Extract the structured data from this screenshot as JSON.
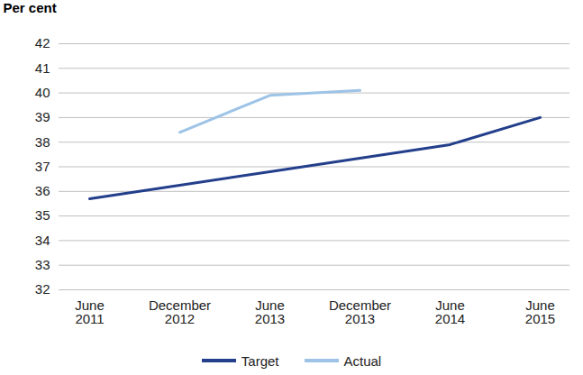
{
  "chart_data": {
    "type": "line",
    "y_label": "Per cent",
    "categories": [
      "June 2011",
      "December 2012",
      "June 2013",
      "December 2013",
      "June 2014",
      "June 2015"
    ],
    "series": [
      {
        "name": "Target",
        "color": "#233f8b",
        "values": [
          35.7,
          36.25,
          36.8,
          37.35,
          37.9,
          39.0
        ]
      },
      {
        "name": "Actual",
        "color": "#9dc3e6",
        "values": [
          null,
          38.4,
          39.9,
          40.1,
          null,
          null
        ]
      }
    ],
    "ylim": [
      32,
      42
    ],
    "yticks": [
      32,
      33,
      34,
      35,
      36,
      37,
      38,
      39,
      40,
      41,
      42
    ],
    "grid": true,
    "legend": "bottom"
  }
}
